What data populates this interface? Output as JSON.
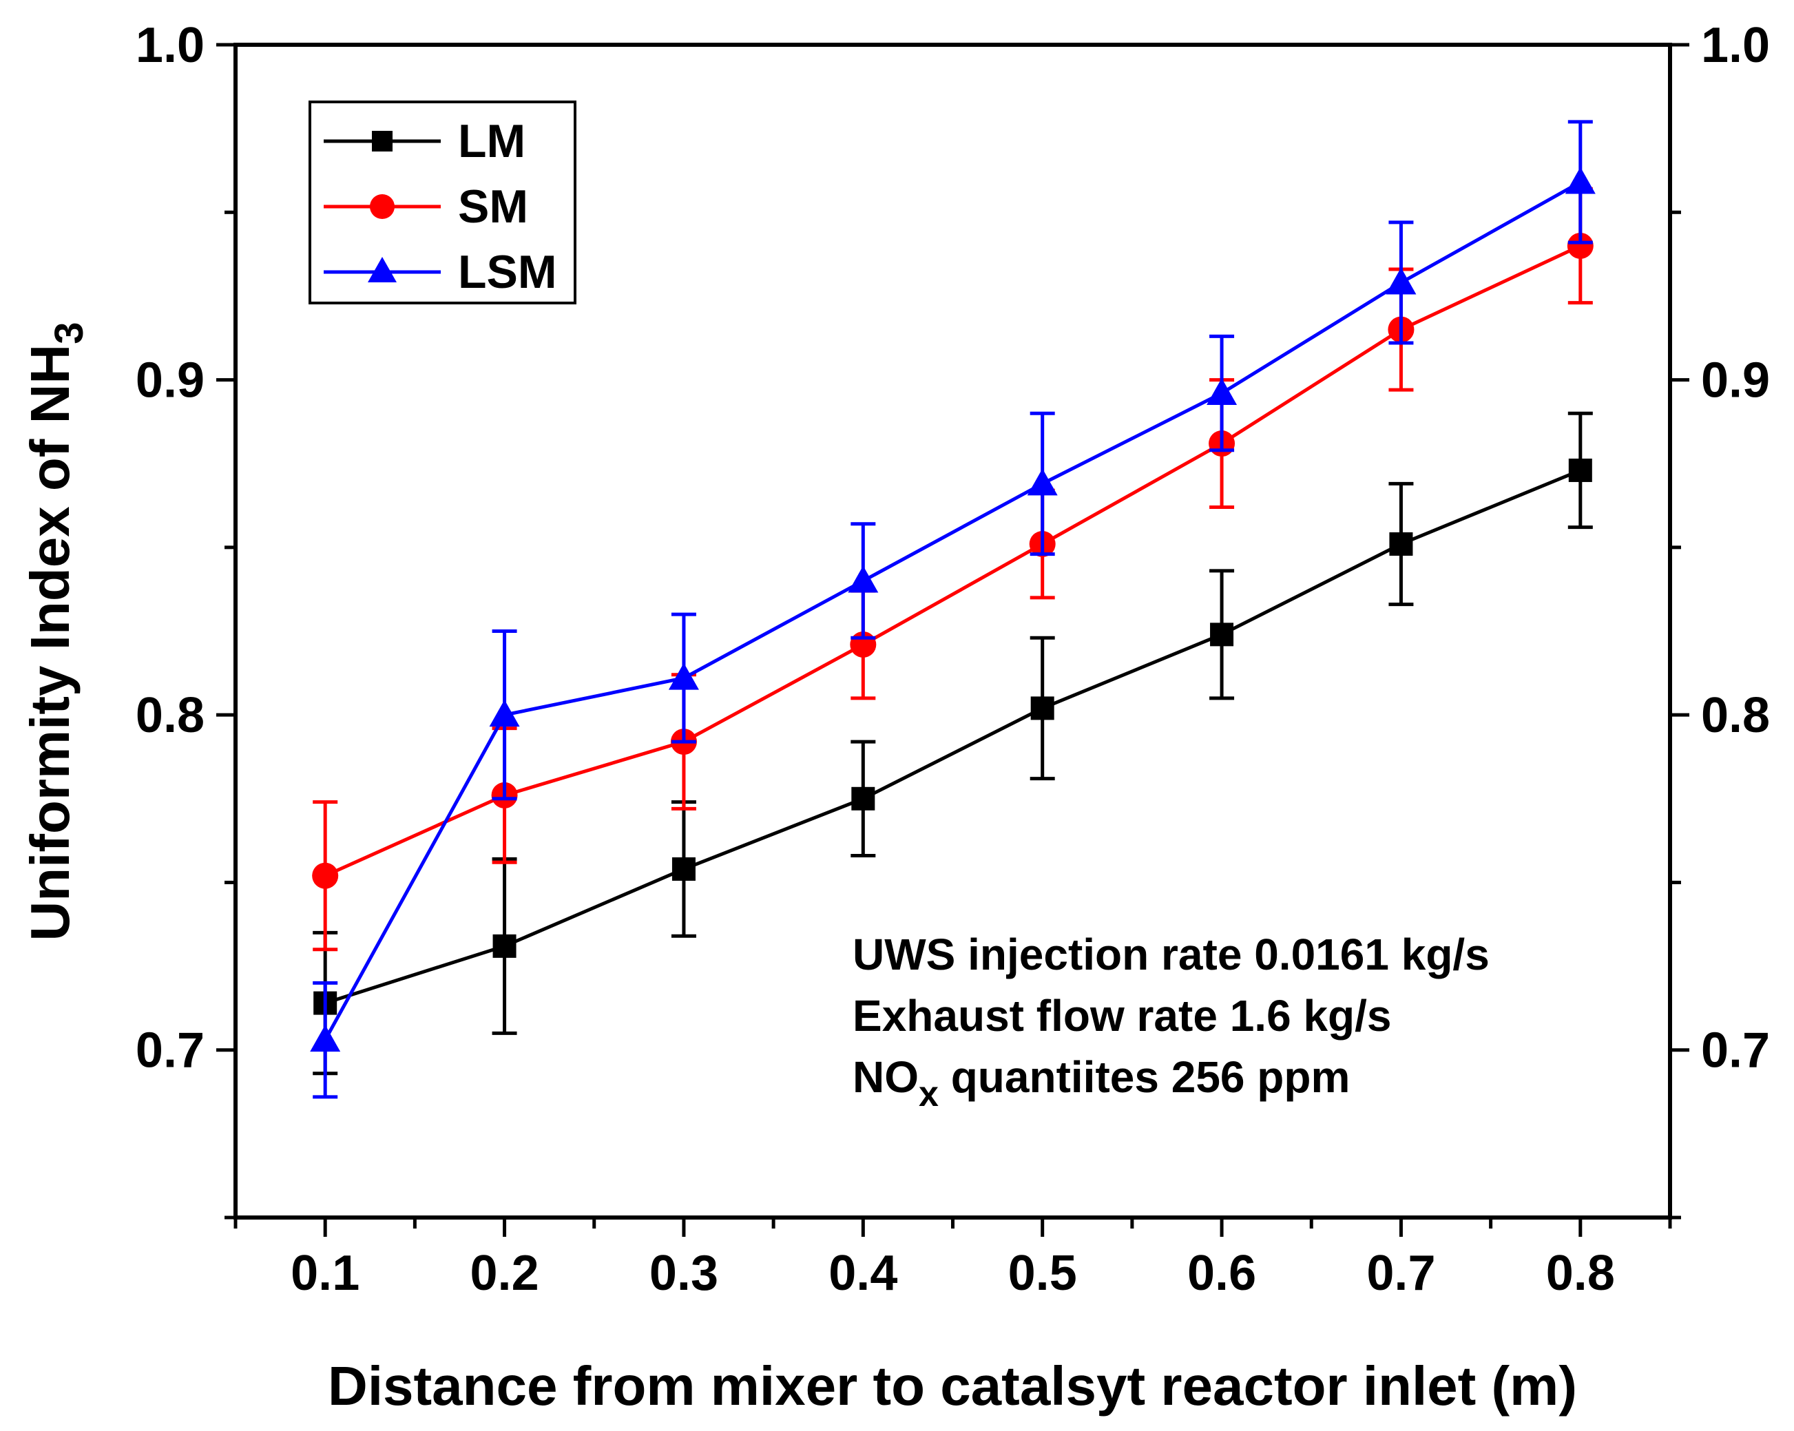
{
  "chart_data": {
    "type": "line",
    "title": "",
    "xlabel": "Distance from mixer to catalsyt reactor inlet (m)",
    "ylabel": "Uniformity Index of NH",
    "ylabel_subscript": "3",
    "xlim": [
      0.05,
      0.85
    ],
    "ylim": [
      0.65,
      1.0
    ],
    "x_ticks": [
      "0.1",
      "0.2",
      "0.3",
      "0.4",
      "0.5",
      "0.6",
      "0.7",
      "0.8"
    ],
    "y_ticks": [
      "0.7",
      "0.8",
      "0.9",
      "1.0"
    ],
    "y_right_ticks": [
      "0.7",
      "0.8",
      "0.9",
      "1.0"
    ],
    "x": [
      0.1,
      0.2,
      0.3,
      0.4,
      0.5,
      0.6,
      0.7,
      0.8
    ],
    "series": [
      {
        "name": "LM",
        "color": "#000000",
        "marker": "square",
        "values": [
          0.714,
          0.731,
          0.754,
          0.775,
          0.802,
          0.824,
          0.851,
          0.873
        ],
        "errors": [
          0.021,
          0.026,
          0.02,
          0.017,
          0.021,
          0.019,
          0.018,
          0.017
        ]
      },
      {
        "name": "SM",
        "color": "#ff0000",
        "marker": "circle",
        "values": [
          0.752,
          0.776,
          0.792,
          0.821,
          0.851,
          0.881,
          0.915,
          0.94
        ],
        "errors": [
          0.022,
          0.02,
          0.02,
          0.016,
          0.016,
          0.019,
          0.018,
          0.017
        ]
      },
      {
        "name": "LSM",
        "color": "#0000ff",
        "marker": "triangle",
        "values": [
          0.703,
          0.8,
          0.811,
          0.84,
          0.869,
          0.896,
          0.929,
          0.959
        ],
        "errors": [
          0.017,
          0.025,
          0.019,
          0.017,
          0.021,
          0.017,
          0.018,
          0.018
        ]
      }
    ],
    "legend": [
      "LM",
      "SM",
      "LSM"
    ],
    "legend_position": "top-left",
    "annotations": {
      "line1": "UWS injection rate 0.0161 kg/s",
      "line2": "Exhaust flow rate 1.6 kg/s",
      "line3_prefix": "NO",
      "line3_sub": "x",
      "line3_suffix": " quantiites 256 ppm"
    }
  }
}
